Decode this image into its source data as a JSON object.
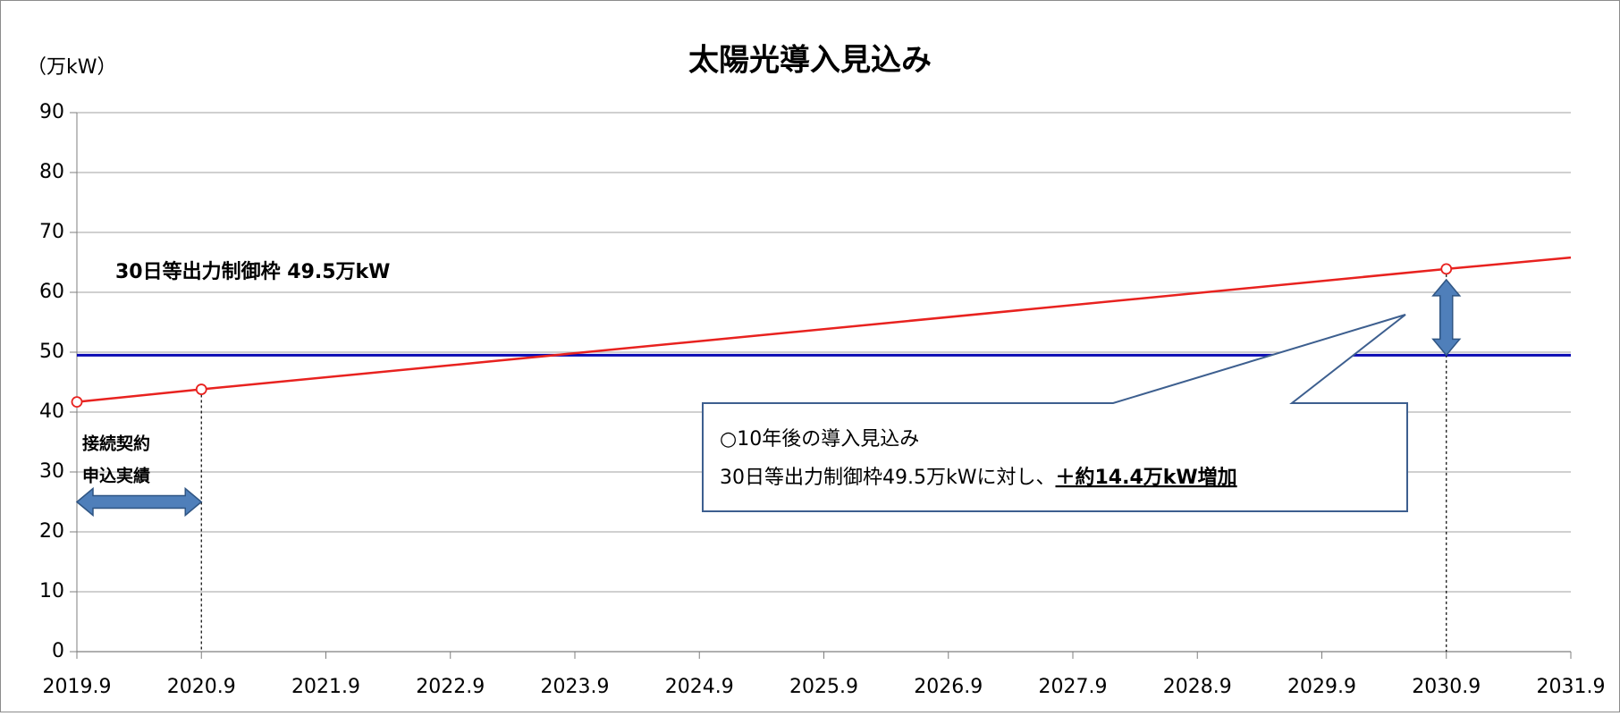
{
  "chart_data": {
    "type": "line",
    "title": "太陽光導入見込み",
    "y_label": "（万kW）",
    "xlim": [
      2019.9,
      2031.9
    ],
    "xticks": [
      2019.9,
      2020.9,
      2021.9,
      2022.9,
      2023.9,
      2024.9,
      2025.9,
      2026.9,
      2027.9,
      2028.9,
      2029.9,
      2030.9,
      2031.9
    ],
    "ylim": [
      0,
      90
    ],
    "yticks": [
      0,
      10,
      20,
      30,
      40,
      50,
      60,
      70,
      80,
      90
    ],
    "grid": true,
    "series": [
      {
        "style": "line",
        "color": "#e8221f",
        "x": [
          2019.9,
          2020.9,
          2030.9,
          2031.9
        ],
        "values": [
          41.7,
          43.8,
          63.9,
          65.8
        ]
      },
      {
        "style": "markers",
        "color": "#e8221f",
        "x": [
          2019.9,
          2020.9,
          2030.9
        ],
        "values": [
          41.7,
          43.8,
          63.9
        ]
      }
    ],
    "reference_line": {
      "value": 49.5,
      "color": "#0a0ab4"
    },
    "annotations": {
      "limit_label": "30日等出力制御枠 49.5万kW",
      "actual_label": [
        "接続契約",
        "申込実績"
      ],
      "callout": {
        "line1": "○10年後の導入見込み",
        "line2": "30日等出力制御枠49.5万kWに対し、",
        "highlight": "＋約14.4万kW増加"
      }
    }
  }
}
